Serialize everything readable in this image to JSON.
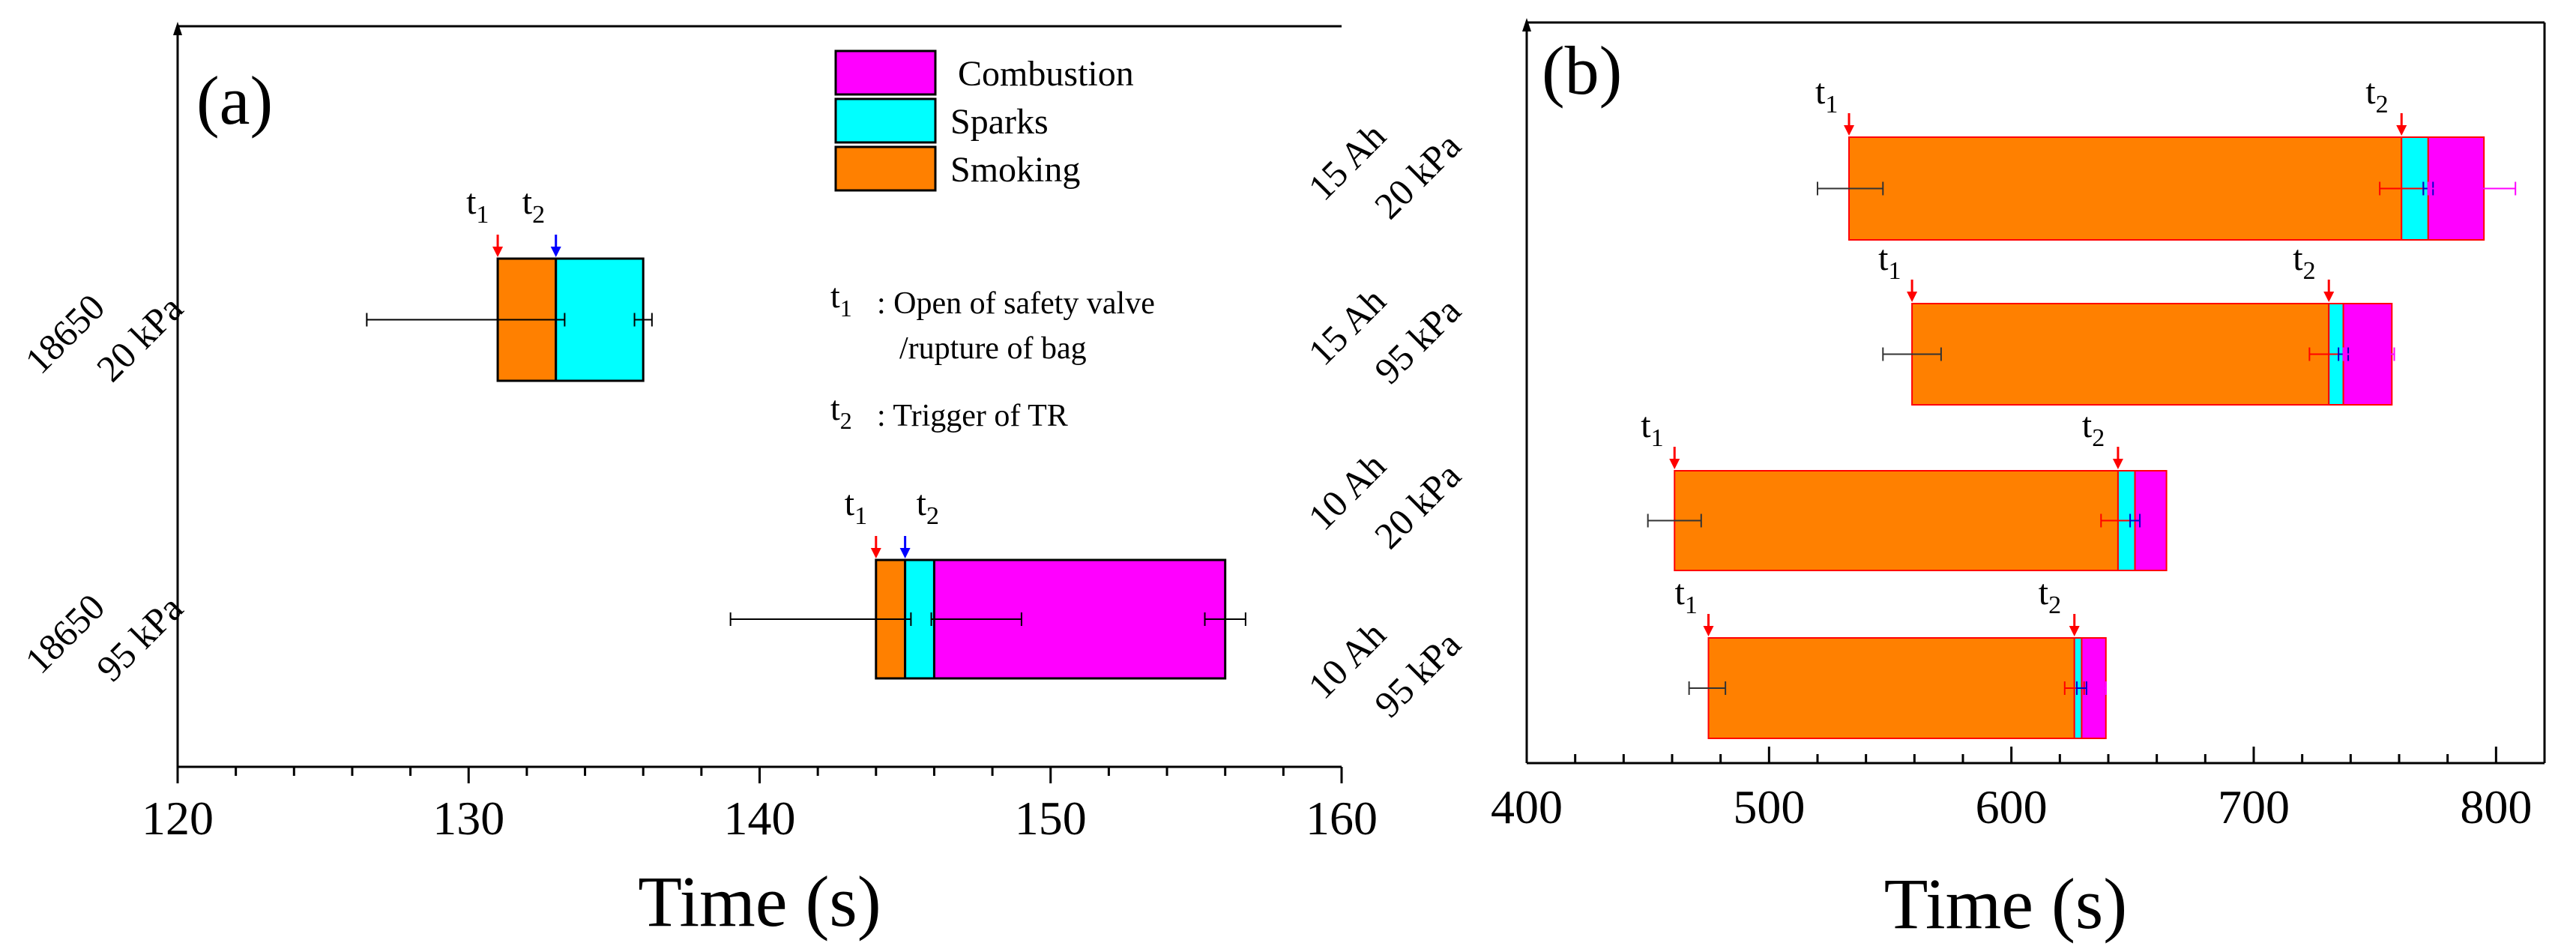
{
  "colors": {
    "smoking": "#FF8000",
    "sparks": "#00FFFF",
    "combustion": "#FF00FF",
    "t1_arrow": "#FF0000",
    "t2_arrow_a": "#0000FF",
    "t2_arrow_b": "#FF0000",
    "errorbar_a": "#000000",
    "bar_edge_b": "#FF0000"
  },
  "chart_data": [
    {
      "panel_label": "(a)",
      "type": "bar",
      "orientation": "horizontal-floating",
      "xlabel": "Time (s)",
      "xlim": [
        120,
        160
      ],
      "xticks": [
        "120",
        "130",
        "140",
        "150",
        "160"
      ],
      "legend": {
        "placement": "top-right",
        "entries": [
          {
            "name": "Combustion",
            "color": "#FF00FF"
          },
          {
            "name": "Sparks",
            "color": "#00FFFF"
          },
          {
            "name": "Smoking",
            "color": "#FF8000"
          }
        ]
      },
      "definitions": [
        {
          "symbol": "t",
          "sub": "1",
          "text": ": Open of safety valve",
          "text2": "/rupture of bag"
        },
        {
          "symbol": "t",
          "sub": "2",
          "text": ": Trigger of TR"
        }
      ],
      "marker_label": {
        "t": "t",
        "sub1": "1",
        "sub2": "2"
      },
      "rows": [
        {
          "label_line1": "18650",
          "label_line2": "20 kPa",
          "segments": [
            {
              "phase": "Smoking",
              "start": 131,
              "end": 133
            },
            {
              "phase": "Sparks",
              "start": 133,
              "end": 136
            }
          ],
          "t1": 131,
          "t2": 133,
          "errorbars": [
            {
              "center": 133,
              "low": 126.5,
              "high": 133.3
            },
            {
              "center": 136,
              "low": 135.7,
              "high": 136.3
            }
          ]
        },
        {
          "label_line1": "18650",
          "label_line2": "95 kPa",
          "segments": [
            {
              "phase": "Smoking",
              "start": 144,
              "end": 145
            },
            {
              "phase": "Sparks",
              "start": 145,
              "end": 146
            },
            {
              "phase": "Combustion",
              "start": 146,
              "end": 156
            }
          ],
          "t1": 144,
          "t2": 145,
          "errorbars": [
            {
              "center": 145,
              "low": 139,
              "high": 145.2
            },
            {
              "center": 146,
              "low": 145.9,
              "high": 149
            },
            {
              "center": 156,
              "low": 155.3,
              "high": 156.7
            }
          ]
        }
      ]
    },
    {
      "panel_label": "(b)",
      "type": "bar",
      "orientation": "horizontal-floating",
      "xlabel": "Time (s)",
      "xlim": [
        400,
        820
      ],
      "xticks": [
        "400",
        "500",
        "600",
        "700",
        "800"
      ],
      "marker_label": {
        "t": "t",
        "sub1": "1",
        "sub2": "2"
      },
      "rows": [
        {
          "label_line1": "15 Ah",
          "label_line2": "20 kPa",
          "segments": [
            {
              "phase": "Smoking",
              "start": 533,
              "end": 761
            },
            {
              "phase": "Sparks",
              "start": 761,
              "end": 772
            },
            {
              "phase": "Combustion",
              "start": 772,
              "end": 795
            }
          ],
          "t1": 533,
          "t2": 761,
          "errorbars": [
            {
              "center": 533,
              "low": 520,
              "high": 547,
              "color": "#333333"
            },
            {
              "center": 761,
              "low": 752,
              "high": 770,
              "color": "#FF0000"
            },
            {
              "center": 772,
              "low": 770,
              "high": 774,
              "color": "#0000CC"
            },
            {
              "center": 795,
              "low": 772,
              "high": 808,
              "color": "#FF00FF"
            }
          ]
        },
        {
          "label_line1": "15 Ah",
          "label_line2": "95 kPa",
          "segments": [
            {
              "phase": "Smoking",
              "start": 559,
              "end": 731
            },
            {
              "phase": "Sparks",
              "start": 731,
              "end": 737
            },
            {
              "phase": "Combustion",
              "start": 737,
              "end": 757
            }
          ],
          "t1": 559,
          "t2": 731,
          "errorbars": [
            {
              "center": 559,
              "low": 547,
              "high": 571,
              "color": "#333333"
            },
            {
              "center": 731,
              "low": 723,
              "high": 739,
              "color": "#FF0000"
            },
            {
              "center": 737,
              "low": 735,
              "high": 739,
              "color": "#0000CC"
            },
            {
              "center": 757,
              "low": 737,
              "high": 758,
              "color": "#FF00FF"
            }
          ]
        },
        {
          "label_line1": "10 Ah",
          "label_line2": "20 kPa",
          "segments": [
            {
              "phase": "Smoking",
              "start": 461,
              "end": 644
            },
            {
              "phase": "Sparks",
              "start": 644,
              "end": 651
            },
            {
              "phase": "Combustion",
              "start": 651,
              "end": 664
            }
          ],
          "t1": 461,
          "t2": 644,
          "errorbars": [
            {
              "center": 461,
              "low": 450,
              "high": 472,
              "color": "#333333"
            },
            {
              "center": 644,
              "low": 637,
              "high": 651,
              "color": "#FF0000"
            },
            {
              "center": 651,
              "low": 649,
              "high": 653,
              "color": "#0000CC"
            }
          ]
        },
        {
          "label_line1": "10 Ah",
          "label_line2": "95 kPa",
          "segments": [
            {
              "phase": "Smoking",
              "start": 475,
              "end": 626
            },
            {
              "phase": "Sparks",
              "start": 626,
              "end": 629
            },
            {
              "phase": "Combustion",
              "start": 629,
              "end": 639
            }
          ],
          "t1": 475,
          "t2": 626,
          "errorbars": [
            {
              "center": 475,
              "low": 467,
              "high": 482,
              "color": "#333333"
            },
            {
              "center": 626,
              "low": 622,
              "high": 630,
              "color": "#FF0000"
            },
            {
              "center": 629,
              "low": 627,
              "high": 631,
              "color": "#0000CC"
            },
            {
              "center": 639,
              "low": 634,
              "high": 639,
              "color": "#FF00FF"
            }
          ]
        }
      ]
    }
  ]
}
